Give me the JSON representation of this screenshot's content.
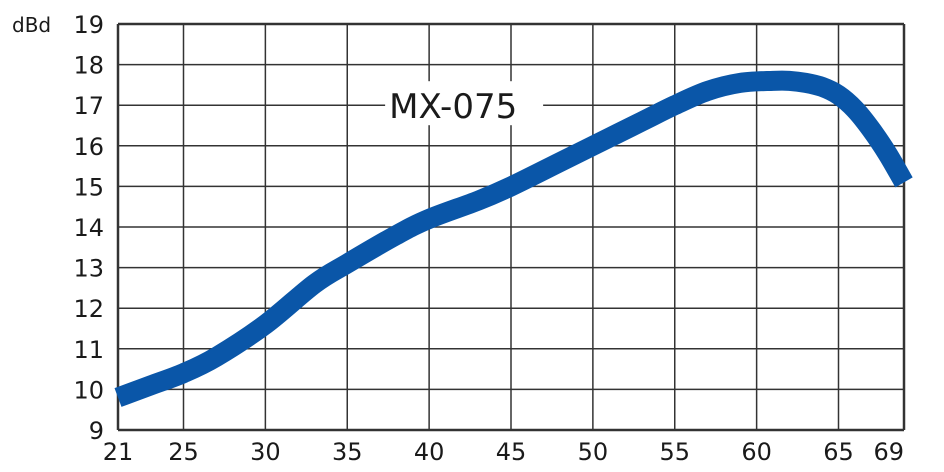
{
  "chart_data": {
    "type": "line",
    "title": "",
    "xlabel": "",
    "ylabel": "dBd",
    "xlim": [
      21,
      69
    ],
    "ylim": [
      9,
      19
    ],
    "grid": true,
    "x_ticks": [
      21,
      25,
      30,
      35,
      40,
      45,
      50,
      55,
      60,
      65,
      69
    ],
    "y_ticks": [
      9,
      10,
      11,
      12,
      13,
      14,
      15,
      16,
      17,
      18,
      19
    ],
    "series": [
      {
        "name": "MX-075",
        "color": "#0a56a8",
        "x": [
          21,
          23,
          25,
          27,
          30,
          33,
          35,
          38,
          40,
          43,
          45,
          48,
          50,
          53,
          55,
          57,
          59,
          61,
          62,
          63,
          64,
          65,
          66,
          67,
          68,
          69
        ],
        "y": [
          9.8,
          10.1,
          10.4,
          10.8,
          11.6,
          12.6,
          13.1,
          13.8,
          14.2,
          14.65,
          15.0,
          15.6,
          16.0,
          16.6,
          17.0,
          17.35,
          17.55,
          17.6,
          17.6,
          17.55,
          17.45,
          17.25,
          16.9,
          16.4,
          15.8,
          15.1
        ]
      }
    ]
  }
}
